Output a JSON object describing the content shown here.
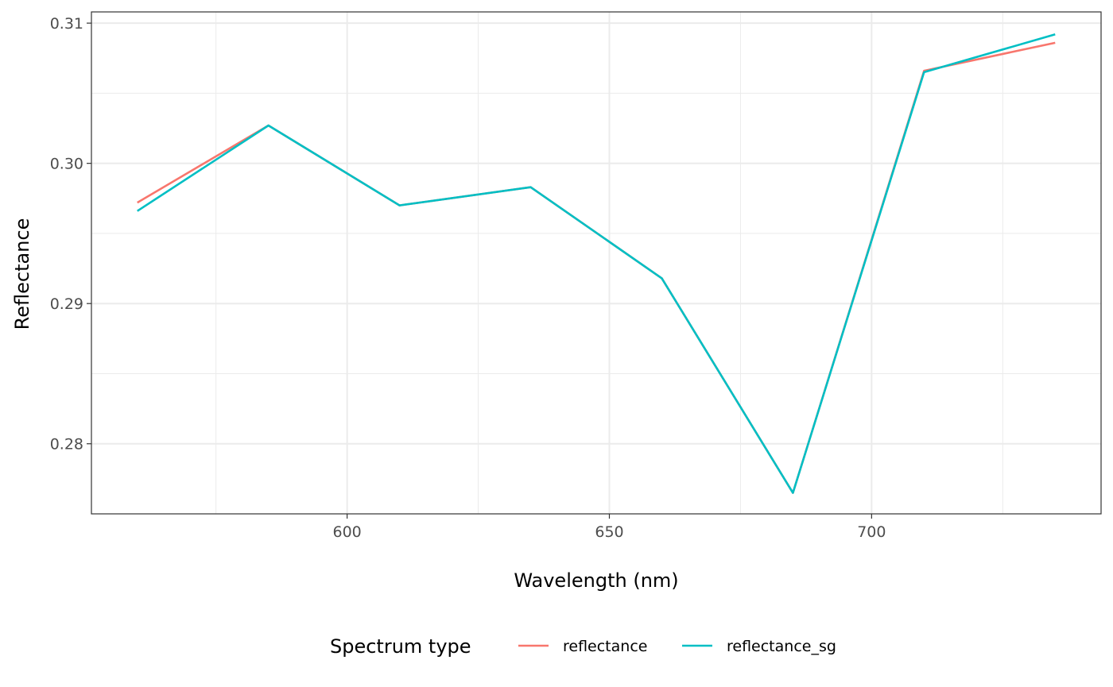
{
  "chart_data": {
    "type": "line",
    "title": "",
    "xlabel": "Wavelength (nm)",
    "ylabel": "Reflectance",
    "xlim": [
      551.25,
      743.75
    ],
    "ylim": [
      0.275,
      0.3108
    ],
    "x_ticks": [
      {
        "value": 600,
        "label": "600"
      },
      {
        "value": 650,
        "label": "650"
      },
      {
        "value": 700,
        "label": "700"
      }
    ],
    "x_minor_ticks": [
      575,
      625,
      675,
      725
    ],
    "y_ticks": [
      {
        "value": 0.28,
        "label": "0.28"
      },
      {
        "value": 0.29,
        "label": "0.29"
      },
      {
        "value": 0.3,
        "label": "0.30"
      },
      {
        "value": 0.31,
        "label": "0.31"
      }
    ],
    "y_minor_ticks": [
      0.285,
      0.295,
      0.305
    ],
    "grid": true,
    "legend": {
      "title": "Spectrum type",
      "position": "bottom"
    },
    "series": [
      {
        "name": "reflectance",
        "color": "#F8766D",
        "x": [
          560,
          585,
          610,
          635,
          660,
          685,
          710,
          735
        ],
        "y": [
          0.2972,
          0.3027,
          0.297,
          0.2983,
          0.2918,
          0.2765,
          0.3066,
          0.3086
        ]
      },
      {
        "name": "reflectance_sg",
        "color": "#00BFC4",
        "x": [
          560,
          585,
          610,
          635,
          660,
          685,
          710,
          735
        ],
        "y": [
          0.2966,
          0.3027,
          0.297,
          0.2983,
          0.2918,
          0.2765,
          0.3065,
          0.3092
        ]
      }
    ]
  }
}
